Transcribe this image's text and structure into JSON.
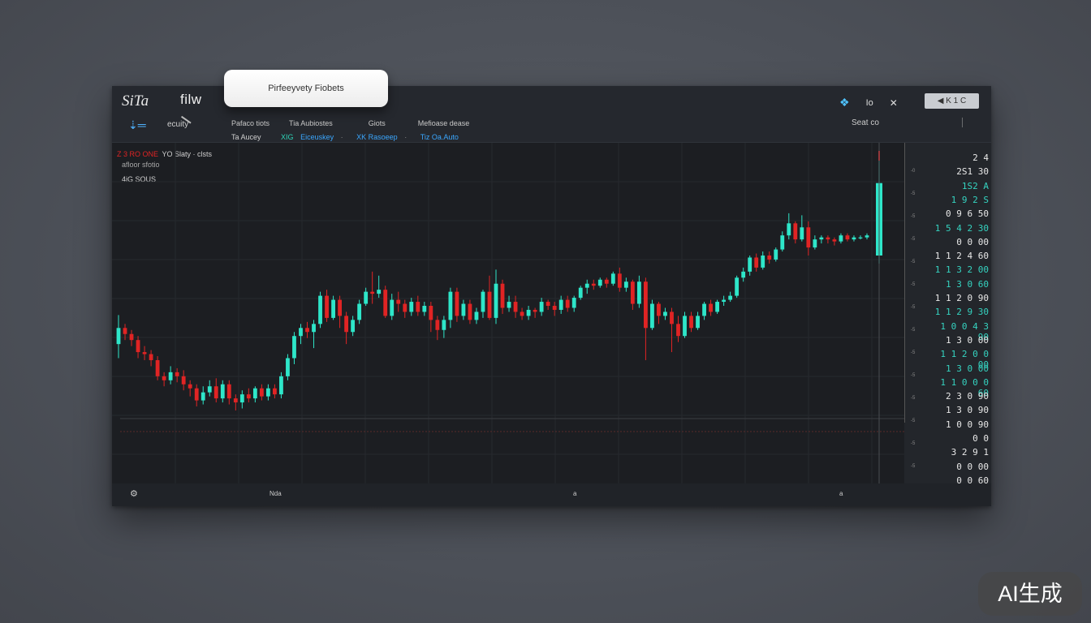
{
  "header": {
    "brand": "SiTa",
    "brand2": "filw",
    "security_label": "ecuity",
    "tool_icon": "chart-tool-icon",
    "menu": [
      "Pafaco tiots",
      "Tia Aubiostes",
      "Giots",
      "Mefioase dease"
    ],
    "sub": [
      "Ta Aucey",
      "XIG",
      "Eiceuskey",
      "XK Rasoeep",
      "Tiz Oa.Auto"
    ],
    "right_text": "Io",
    "right_close": "✕",
    "right_button": "◀ K 1 C",
    "search_label": "Seat co",
    "right_mark": "│"
  },
  "popup": {
    "label": "Pirfeeyvety Fiobets"
  },
  "chart_info": {
    "line1_red": "Z 3 RO ONE",
    "line1_rest": "YO  Slaty · clsts",
    "line2": "afloor sfotio",
    "line3": "4iG SOUS"
  },
  "price_scale": {
    "labels": [
      {
        "t": "2 4",
        "c": "w"
      },
      {
        "t": "2S1 30",
        "c": "w"
      },
      {
        "t": "1S2 A",
        "c": "g"
      },
      {
        "t": "1 9 2 S",
        "c": "g"
      },
      {
        "t": "0 9 6 50",
        "c": "w"
      },
      {
        "t": "1 5 4 2 30",
        "c": "g"
      },
      {
        "t": "0 0 00",
        "c": "w"
      },
      {
        "t": "1 1 2 4 60",
        "c": "w"
      },
      {
        "t": "1 1 3 2 00",
        "c": "g"
      },
      {
        "t": "1 3 0 60",
        "c": "g"
      },
      {
        "t": "1 1 2 0 90",
        "c": "w"
      },
      {
        "t": "1 1 2 9 30",
        "c": "g"
      },
      {
        "t": "1 0 0 4 3 90",
        "c": "g"
      },
      {
        "t": "1 3 0 00",
        "c": "w"
      },
      {
        "t": "1 1 2 0 0 00",
        "c": "g"
      },
      {
        "t": "1 3 0 00",
        "c": "g"
      },
      {
        "t": "1 1 0 0 0 60",
        "c": "g"
      },
      {
        "t": "2 3 0 90",
        "c": "w"
      },
      {
        "t": "1 3 0 90",
        "c": "w"
      },
      {
        "t": "1 0 0 90",
        "c": "w"
      },
      {
        "t": "0 0",
        "c": "w"
      },
      {
        "t": "3 2 9 1",
        "c": "w"
      },
      {
        "t": "0 0 00",
        "c": "w"
      },
      {
        "t": "0 0 60",
        "c": "w"
      }
    ],
    "ticks": [
      "-0",
      "-5",
      "-5",
      "-5",
      "-5",
      "-5",
      "-5",
      "-5",
      "-5",
      "-5",
      "-5",
      "-5",
      "-5",
      "-5"
    ]
  },
  "bottom": {
    "left_icon": "settings-icon",
    "label1": "Nda",
    "label2": "a",
    "label3": "a"
  },
  "watermark": "AI生成",
  "chart_data": {
    "type": "candlestick",
    "colors": {
      "up": "#2ee6c9",
      "down": "#e02424"
    },
    "candles": [
      [
        100.0,
        104.0,
        96.5,
        107.2
      ],
      [
        104.0,
        102.5,
        101.0,
        105.0
      ],
      [
        102.5,
        101.0,
        99.5,
        103.5
      ],
      [
        101.0,
        98.0,
        96.5,
        102.0
      ],
      [
        98.0,
        97.5,
        96.0,
        99.5
      ],
      [
        97.5,
        96.0,
        94.5,
        98.5
      ],
      [
        96.0,
        92.0,
        91.0,
        97.0
      ],
      [
        92.0,
        91.0,
        89.5,
        93.0
      ],
      [
        91.0,
        93.0,
        90.0,
        94.5
      ],
      [
        93.0,
        92.0,
        90.5,
        94.0
      ],
      [
        92.0,
        90.0,
        88.5,
        93.5
      ],
      [
        90.0,
        89.0,
        87.0,
        91.0
      ],
      [
        89.0,
        86.0,
        84.5,
        90.0
      ],
      [
        86.0,
        88.0,
        85.0,
        89.5
      ],
      [
        88.0,
        89.5,
        87.0,
        91.0
      ],
      [
        89.5,
        86.5,
        85.5,
        91.5
      ],
      [
        86.5,
        90.0,
        85.5,
        91.0
      ],
      [
        90.0,
        86.5,
        85.0,
        91.0
      ],
      [
        86.5,
        85.5,
        83.5,
        87.5
      ],
      [
        85.5,
        87.5,
        84.0,
        88.5
      ],
      [
        87.5,
        86.5,
        85.5,
        89.0
      ],
      [
        86.5,
        89.0,
        85.5,
        89.5
      ],
      [
        89.0,
        87.0,
        86.0,
        90.0
      ],
      [
        87.0,
        89.0,
        86.0,
        90.0
      ],
      [
        89.0,
        87.5,
        86.5,
        90.0
      ],
      [
        87.5,
        92.0,
        86.5,
        93.0
      ],
      [
        92.0,
        96.5,
        91.0,
        97.5
      ],
      [
        96.5,
        102.0,
        95.0,
        103.0
      ],
      [
        102.0,
        104.0,
        100.0,
        105.0
      ],
      [
        104.0,
        103.0,
        101.5,
        105.5
      ],
      [
        103.0,
        105.0,
        99.0,
        106.0
      ],
      [
        105.0,
        112.0,
        104.0,
        113.0
      ],
      [
        112.0,
        106.5,
        105.5,
        113.5
      ],
      [
        106.5,
        111.0,
        106.0,
        112.0
      ],
      [
        111.0,
        107.0,
        104.0,
        112.0
      ],
      [
        107.0,
        103.0,
        100.0,
        108.0
      ],
      [
        103.0,
        106.0,
        102.0,
        107.0
      ],
      [
        106.0,
        110.0,
        105.0,
        111.0
      ],
      [
        110.0,
        113.0,
        109.5,
        114.0
      ],
      [
        113.0,
        112.5,
        110.0,
        118.0
      ],
      [
        112.5,
        113.5,
        111.5,
        117.0
      ],
      [
        113.5,
        107.0,
        106.5,
        114.5
      ],
      [
        107.0,
        111.0,
        106.0,
        112.5
      ],
      [
        111.0,
        110.0,
        108.0,
        113.0
      ],
      [
        110.0,
        108.0,
        106.5,
        111.0
      ],
      [
        108.0,
        110.5,
        107.0,
        111.5
      ],
      [
        110.5,
        108.0,
        107.0,
        112.0
      ],
      [
        108.0,
        109.5,
        107.0,
        110.5
      ],
      [
        109.5,
        106.0,
        103.0,
        110.5
      ],
      [
        106.0,
        103.5,
        101.0,
        107.0
      ],
      [
        103.5,
        106.0,
        101.5,
        107.0
      ],
      [
        106.0,
        113.0,
        104.0,
        114.0
      ],
      [
        113.0,
        107.0,
        105.5,
        114.0
      ],
      [
        107.0,
        110.0,
        106.0,
        111.0
      ],
      [
        110.0,
        106.0,
        105.0,
        111.0
      ],
      [
        106.0,
        108.0,
        105.0,
        109.0
      ],
      [
        108.0,
        113.0,
        106.5,
        113.5
      ],
      [
        113.0,
        106.5,
        106.0,
        117.0
      ],
      [
        106.5,
        115.0,
        105.0,
        118.5
      ],
      [
        115.0,
        109.0,
        107.5,
        116.0
      ],
      [
        109.0,
        110.5,
        108.0,
        112.0
      ],
      [
        110.5,
        108.0,
        106.5,
        112.0
      ],
      [
        108.0,
        107.0,
        106.0,
        109.0
      ],
      [
        107.0,
        108.5,
        106.0,
        109.5
      ],
      [
        108.5,
        108.0,
        106.5,
        109.0
      ],
      [
        108.0,
        110.5,
        107.0,
        111.5
      ],
      [
        110.5,
        109.5,
        108.5,
        111.0
      ],
      [
        109.5,
        108.5,
        107.0,
        110.5
      ],
      [
        108.5,
        111.0,
        107.5,
        112.0
      ],
      [
        111.0,
        109.0,
        108.0,
        112.0
      ],
      [
        109.0,
        111.5,
        108.0,
        112.0
      ],
      [
        111.5,
        114.0,
        111.0,
        114.5
      ],
      [
        114.0,
        115.0,
        112.5,
        116.0
      ],
      [
        115.0,
        114.5,
        113.5,
        116.0
      ],
      [
        114.5,
        116.0,
        114.0,
        116.5
      ],
      [
        116.0,
        115.0,
        114.0,
        116.5
      ],
      [
        115.0,
        117.5,
        114.5,
        118.0
      ],
      [
        117.5,
        114.0,
        113.0,
        119.0
      ],
      [
        114.0,
        115.5,
        113.0,
        116.5
      ],
      [
        115.5,
        110.0,
        108.5,
        116.0
      ],
      [
        110.0,
        115.5,
        109.0,
        117.0
      ],
      [
        115.5,
        104.0,
        96.0,
        116.5
      ],
      [
        104.0,
        110.0,
        103.5,
        111.0
      ],
      [
        110.0,
        107.0,
        105.0,
        110.5
      ],
      [
        107.0,
        108.0,
        106.0,
        109.0
      ],
      [
        108.0,
        105.0,
        98.0,
        109.0
      ],
      [
        105.0,
        102.0,
        100.5,
        107.0
      ],
      [
        102.0,
        107.0,
        101.5,
        108.0
      ],
      [
        107.0,
        104.0,
        103.0,
        108.0
      ],
      [
        104.0,
        107.0,
        103.5,
        108.0
      ],
      [
        107.0,
        110.0,
        106.0,
        110.5
      ],
      [
        110.0,
        108.0,
        107.0,
        111.0
      ],
      [
        108.0,
        110.5,
        107.5,
        111.0
      ],
      [
        110.5,
        111.0,
        109.5,
        112.0
      ],
      [
        111.0,
        112.0,
        110.5,
        113.0
      ],
      [
        112.0,
        116.5,
        111.5,
        117.0
      ],
      [
        116.5,
        118.0,
        115.5,
        119.0
      ],
      [
        118.0,
        121.5,
        117.0,
        122.0
      ],
      [
        121.5,
        119.0,
        118.0,
        122.5
      ],
      [
        119.0,
        122.0,
        118.5,
        123.0
      ],
      [
        122.0,
        121.0,
        120.0,
        123.0
      ],
      [
        121.0,
        123.5,
        120.5,
        124.0
      ],
      [
        123.5,
        127.0,
        123.0,
        128.0
      ],
      [
        127.0,
        130.0,
        126.0,
        132.5
      ],
      [
        130.0,
        126.0,
        125.0,
        130.5
      ],
      [
        126.0,
        129.0,
        125.5,
        132.0
      ],
      [
        129.0,
        124.0,
        122.0,
        130.5
      ],
      [
        124.0,
        126.0,
        123.5,
        127.0
      ],
      [
        126.0,
        126.5,
        125.0,
        127.0
      ],
      [
        126.5,
        126.0,
        125.0,
        127.0
      ],
      [
        126.0,
        125.5,
        124.5,
        126.5
      ],
      [
        125.5,
        127.0,
        125.0,
        127.5
      ],
      [
        127.0,
        126.0,
        125.5,
        127.5
      ],
      [
        126.0,
        126.5,
        125.5,
        127.0
      ],
      [
        126.5,
        126.5,
        126.0,
        127.0
      ],
      [
        126.5,
        127.0,
        126.0,
        127.5
      ]
    ],
    "spike": {
      "open": 122,
      "close": 140,
      "low": 120,
      "high": 148
    }
  }
}
